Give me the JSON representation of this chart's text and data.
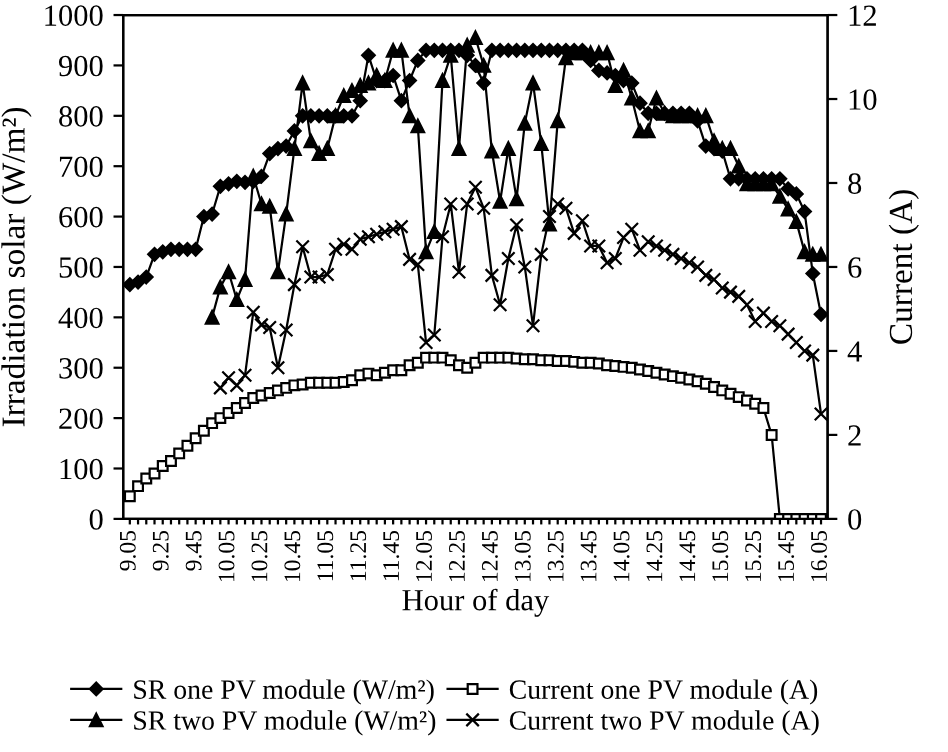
{
  "chart_data": {
    "type": "line",
    "xlabel": "Hour of day",
    "ylabel": "Irradiation solar (W/m²)",
    "y2label": "Current (A)",
    "categories": [
      "9.05",
      null,
      null,
      null,
      "9.25",
      null,
      null,
      null,
      "9.45",
      null,
      null,
      null,
      "10.05",
      null,
      null,
      null,
      "10.25",
      null,
      null,
      null,
      "10.45",
      null,
      null,
      null,
      "11.05",
      null,
      null,
      null,
      "11.25",
      null,
      null,
      null,
      "11.45",
      null,
      null,
      null,
      "12.05",
      null,
      null,
      null,
      "12.25",
      null,
      null,
      null,
      "12.45",
      null,
      null,
      null,
      "13.05",
      null,
      null,
      null,
      "13.25",
      null,
      null,
      null,
      "13.45",
      null,
      null,
      null,
      "14.05",
      null,
      null,
      null,
      "14.25",
      null,
      null,
      null,
      "14.45",
      null,
      null,
      null,
      "15.05",
      null,
      null,
      null,
      "15.25",
      null,
      null,
      null,
      "15.45",
      null,
      null,
      null,
      "16.05"
    ],
    "ylim": [
      0,
      1000
    ],
    "yticks": [
      0,
      100,
      200,
      300,
      400,
      500,
      600,
      700,
      800,
      900,
      1000
    ],
    "y2lim": [
      0,
      12
    ],
    "y2ticks": [
      0,
      2,
      4,
      6,
      8,
      10,
      12
    ],
    "grid": false,
    "legend": "bottom",
    "series": [
      {
        "name": "SR one PV module (W/m²)",
        "color": "#000000",
        "marker": "diamond",
        "values": [
          465,
          470,
          480,
          525,
          530,
          535,
          535,
          535,
          535,
          600,
          605,
          660,
          665,
          670,
          668,
          670,
          680,
          725,
          735,
          740,
          770,
          800,
          800,
          800,
          800,
          800,
          800,
          800,
          830,
          920,
          870,
          870,
          880,
          830,
          870,
          910,
          930,
          930,
          930,
          930,
          930,
          920,
          900,
          865,
          930,
          930,
          930,
          930,
          930,
          930,
          930,
          930,
          930,
          930,
          930,
          930,
          910,
          890,
          885,
          880,
          870,
          865,
          825,
          805,
          805,
          805,
          805,
          805,
          805,
          790,
          740,
          735,
          730,
          675,
          675,
          675,
          675,
          675,
          675,
          675,
          655,
          645,
          610,
          487,
          406
        ]
      },
      {
        "name": "SR two PV module (W/m²)",
        "color": "#000000",
        "marker": "triangle",
        "values": [
          null,
          null,
          null,
          null,
          null,
          null,
          null,
          null,
          null,
          null,
          400,
          460,
          490,
          435,
          475,
          680,
          625,
          620,
          490,
          605,
          735,
          865,
          750,
          725,
          735,
          800,
          840,
          850,
          860,
          865,
          880,
          870,
          930,
          930,
          800,
          780,
          530,
          570,
          870,
          920,
          735,
          940,
          955,
          900,
          730,
          630,
          735,
          635,
          785,
          865,
          745,
          585,
          790,
          915,
          925,
          925,
          925,
          925,
          925,
          860,
          890,
          835,
          770,
          770,
          835,
          805,
          800,
          800,
          800,
          800,
          800,
          750,
          735,
          735,
          700,
          665,
          665,
          665,
          665,
          640,
          615,
          590,
          530,
          525,
          525
        ]
      },
      {
        "name": "Current one PV module (A)",
        "color": "#000000",
        "marker": "square",
        "axis": "y2",
        "values": [
          0.54,
          0.78,
          0.96,
          1.08,
          1.26,
          1.38,
          1.56,
          1.74,
          1.92,
          2.1,
          2.28,
          2.4,
          2.52,
          2.64,
          2.76,
          2.88,
          2.94,
          3.0,
          3.06,
          3.12,
          3.18,
          3.2,
          3.24,
          3.24,
          3.24,
          3.24,
          3.26,
          3.3,
          3.42,
          3.46,
          3.42,
          3.48,
          3.54,
          3.54,
          3.66,
          3.72,
          3.84,
          3.84,
          3.84,
          3.78,
          3.66,
          3.6,
          3.72,
          3.84,
          3.84,
          3.84,
          3.84,
          3.82,
          3.8,
          3.8,
          3.78,
          3.78,
          3.76,
          3.76,
          3.74,
          3.72,
          3.72,
          3.7,
          3.66,
          3.64,
          3.62,
          3.6,
          3.56,
          3.52,
          3.48,
          3.44,
          3.4,
          3.36,
          3.32,
          3.28,
          3.22,
          3.14,
          3.06,
          2.98,
          2.9,
          2.82,
          2.74,
          2.64,
          2.0,
          0,
          0,
          0,
          0,
          0,
          0
        ]
      },
      {
        "name": "Current two PV module (A)",
        "color": "#000000",
        "marker": "cross",
        "axis": "y2",
        "values": [
          null,
          null,
          null,
          null,
          null,
          null,
          null,
          null,
          null,
          null,
          null,
          3.12,
          3.36,
          3.18,
          3.42,
          4.92,
          4.62,
          4.56,
          3.6,
          4.5,
          5.58,
          6.48,
          5.76,
          5.76,
          5.82,
          6.42,
          6.54,
          6.42,
          6.66,
          6.72,
          6.78,
          6.84,
          6.9,
          6.96,
          6.18,
          6.06,
          4.2,
          4.38,
          6.72,
          7.5,
          5.88,
          7.5,
          7.9,
          7.4,
          5.8,
          5.1,
          6.2,
          7.0,
          6.0,
          4.6,
          6.3,
          7.2,
          7.5,
          7.4,
          6.8,
          7.1,
          6.5,
          6.5,
          6.1,
          6.2,
          6.7,
          6.9,
          6.4,
          6.6,
          6.5,
          6.4,
          6.3,
          6.2,
          6.1,
          6.0,
          5.8,
          5.7,
          5.5,
          5.4,
          5.3,
          5.1,
          4.7,
          4.9,
          4.7,
          4.6,
          4.4,
          4.2,
          4.0,
          3.9,
          2.5
        ]
      }
    ]
  }
}
